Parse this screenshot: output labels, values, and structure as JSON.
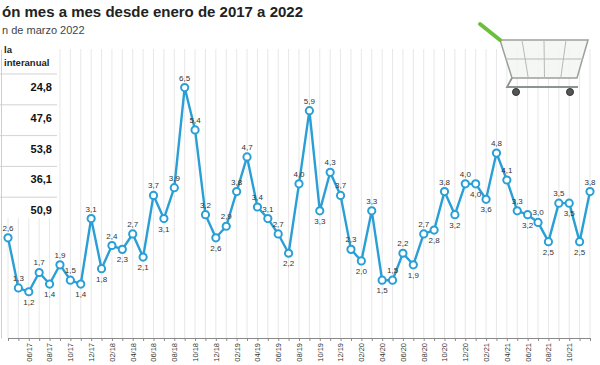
{
  "chart_data": {
    "type": "line",
    "title": "ón mes a mes desde enero de 2017 a 2022",
    "subtitle": "n de marzo 2022",
    "categories": [
      null,
      null,
      "06/17",
      null,
      "08/17",
      null,
      "10/17",
      null,
      "12/17",
      null,
      "02/18",
      null,
      "04/18",
      null,
      "06/18",
      null,
      "08/18",
      null,
      "10/18",
      null,
      "12/18",
      null,
      "02/19",
      null,
      "04/19",
      null,
      "06/19",
      null,
      "08/19",
      null,
      "10/19",
      null,
      "12/19",
      null,
      "02/20",
      null,
      "04/20",
      null,
      "06/20",
      null,
      "08/20",
      null,
      "10/20",
      null,
      "12/20",
      null,
      "02/21",
      null,
      "04/21",
      null,
      "06/21",
      null,
      "08/21",
      null,
      "10/21",
      null,
      null
    ],
    "values": [
      2.6,
      1.3,
      1.2,
      1.7,
      1.4,
      1.9,
      1.5,
      1.4,
      3.1,
      1.8,
      2.4,
      2.3,
      2.7,
      2.1,
      3.7,
      3.1,
      3.9,
      6.5,
      5.4,
      3.2,
      2.6,
      2.9,
      3.8,
      4.7,
      3.4,
      3.1,
      2.7,
      2.2,
      4.0,
      5.9,
      3.3,
      4.3,
      3.7,
      2.3,
      2.0,
      3.3,
      1.5,
      1.5,
      2.2,
      1.9,
      2.7,
      2.8,
      3.8,
      3.2,
      4.0,
      4.0,
      3.6,
      4.8,
      4.1,
      3.3,
      3.2,
      3.0,
      2.5,
      3.5,
      3.5,
      2.5,
      3.8
    ],
    "value_labels": [
      "2,6",
      "1,3",
      "1,2",
      "1,7",
      "1,4",
      "1,9",
      "1,5",
      "1,4",
      "3,1",
      "1,8",
      "2,4",
      "2,3",
      "2,7",
      "2,1",
      "3,7",
      "3,1",
      "3,9",
      "6,5",
      "5,4",
      "3,2",
      "2,6",
      "2,9",
      "3,8",
      "4,7",
      "3,4",
      "3,1",
      "2,7",
      "2,2",
      "4,0",
      "5,9",
      "3,3",
      "4,3",
      "3,7",
      "2,3",
      "2,0",
      "3,3",
      "1,5",
      "1,5",
      "2,2",
      "1,9",
      "2,7",
      "2,8",
      "3,8",
      "3,2",
      "4,0",
      "4,0",
      "3,6",
      "4,8",
      "4,1",
      "3,3",
      "3,2",
      "3,0",
      "2,5",
      "3,5",
      "3,5",
      "2,5",
      "3,8"
    ],
    "color": "#2a9fd6",
    "marker": "circle",
    "ylim": [
      0,
      7.5
    ],
    "grid": true,
    "data_labels": true,
    "tick_labels": "x"
  },
  "inset_table": {
    "header": [
      "la",
      "interanual"
    ],
    "rows": [
      "24,8",
      "47,6",
      "53,8",
      "36,1",
      "50,9"
    ]
  }
}
